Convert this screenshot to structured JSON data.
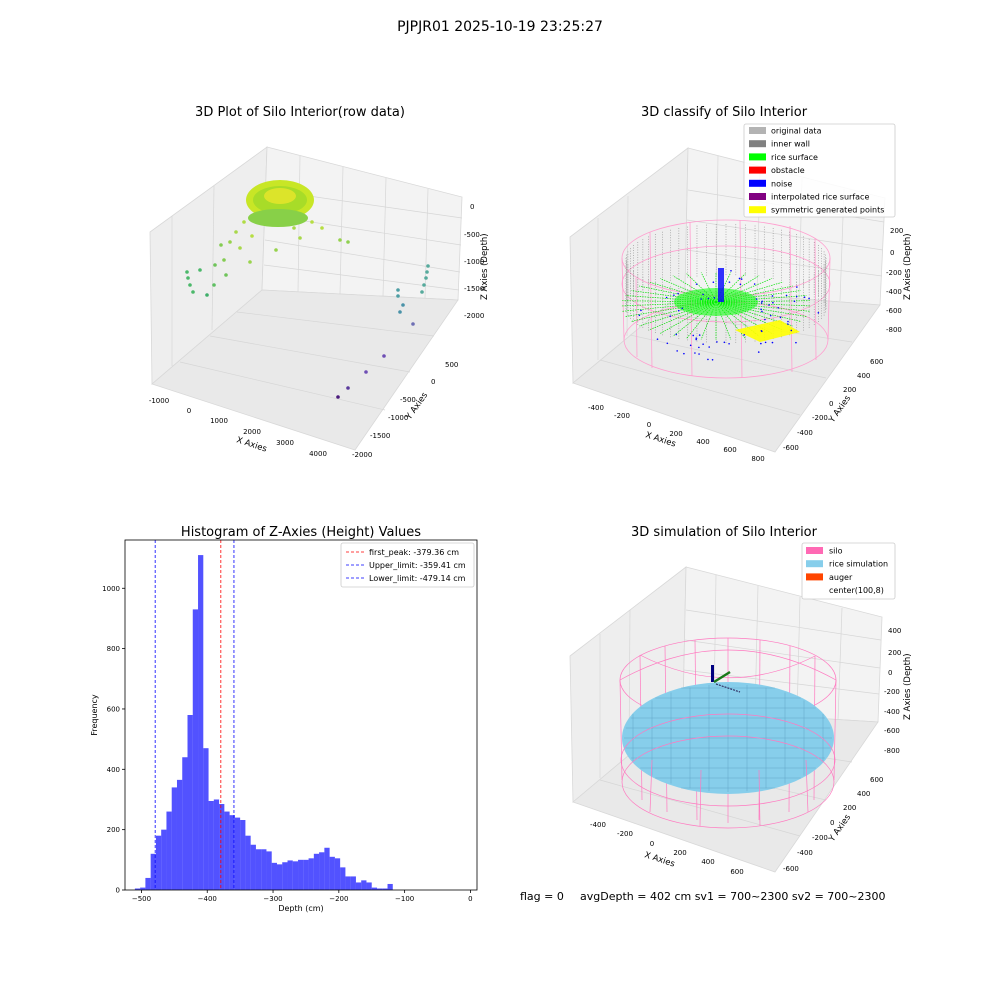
{
  "suptitle": "PJPJR01 2025-10-19 23:25:27",
  "panels": {
    "raw": {
      "title": "3D Plot of Silo Interior(row data)",
      "xlabel": "X Axies",
      "ylabel": "Y Axies",
      "zlabel": "Z Axies (Depth)",
      "xticks": [
        "-1000",
        "0",
        "1000",
        "2000",
        "3000",
        "4000"
      ],
      "yticks": [
        "500",
        "0",
        "-500",
        "-1000",
        "-1500",
        "-2000"
      ],
      "zticks": [
        "0",
        "-500",
        "-1000",
        "-1500",
        "-2000"
      ]
    },
    "classify": {
      "title": "3D classify of Silo Interior",
      "xlabel": "X Axies",
      "ylabel": "Y Axies",
      "zlabel": "Z Axies (Depth)",
      "xticks": [
        "-400",
        "-200",
        "0",
        "200",
        "400",
        "600",
        "800"
      ],
      "yticks": [
        "600",
        "400",
        "200",
        "0",
        "-200",
        "-400",
        "-600"
      ],
      "zticks": [
        "200",
        "0",
        "-200",
        "-400",
        "-600",
        "-800"
      ],
      "legend": [
        {
          "label": "original data",
          "color": "#b3b3b3"
        },
        {
          "label": "inner wall",
          "color": "#808080"
        },
        {
          "label": "rice surface",
          "color": "#00ff00"
        },
        {
          "label": "obstacle",
          "color": "#ff0000"
        },
        {
          "label": "noise",
          "color": "#0000ff"
        },
        {
          "label": "interpolated rice surface",
          "color": "#800080"
        },
        {
          "label": "symmetric generated points",
          "color": "#ffff00"
        }
      ]
    },
    "simulation": {
      "title": "3D simulation of Silo Interior",
      "xlabel": "X Axies",
      "ylabel": "Y Axies",
      "zlabel": "Z Axies (Depth)",
      "xticks": [
        "-400",
        "-200",
        "0",
        "200",
        "400",
        "600"
      ],
      "yticks": [
        "600",
        "400",
        "200",
        "0",
        "-200",
        "-400",
        "-600"
      ],
      "zticks": [
        "400",
        "200",
        "0",
        "-200",
        "-400",
        "-600",
        "-800"
      ],
      "legend": [
        {
          "label": "silo",
          "color": "#ff69b4"
        },
        {
          "label": "rice simulation",
          "color": "#87ceeb"
        },
        {
          "label": "auger",
          "color": "#ff4500"
        },
        {
          "label": "center(100,8)",
          "color": ""
        }
      ]
    }
  },
  "chart_data": {
    "type": "bar",
    "title": "Histogram of Z-Axies (Height) Values",
    "xlabel": "Depth (cm)",
    "ylabel": "Frequency",
    "xlim": [
      -525,
      10
    ],
    "ylim": [
      0,
      1160
    ],
    "xticks": [
      -500,
      -400,
      -300,
      -200,
      -100,
      0
    ],
    "yticks": [
      0,
      200,
      400,
      600,
      800,
      1000
    ],
    "bin_start": -510,
    "bin_width": 8.0,
    "values": [
      5,
      8,
      40,
      120,
      180,
      200,
      260,
      340,
      365,
      440,
      580,
      930,
      1110,
      470,
      295,
      300,
      285,
      260,
      248,
      240,
      232,
      180,
      150,
      135,
      135,
      128,
      90,
      85,
      92,
      98,
      95,
      100,
      100,
      105,
      120,
      125,
      140,
      110,
      105,
      75,
      45,
      45,
      25,
      32,
      25,
      8,
      5,
      5,
      20
    ],
    "color": "#0000ff",
    "vlines": [
      {
        "label": "first_peak: -379.36 cm",
        "x": -379.36,
        "color": "#ff0000"
      },
      {
        "label": "Upper_limit: -359.41 cm",
        "x": -359.41,
        "color": "#0000ff"
      },
      {
        "label": "Lower_limit: -479.14 cm",
        "x": -479.14,
        "color": "#0000ff"
      }
    ],
    "legend_position": "top-right"
  },
  "footer": {
    "flag": "flag = 0",
    "info": "avgDepth = 402 cm  sv1 = 700~2300  sv2 = 700~2300"
  }
}
